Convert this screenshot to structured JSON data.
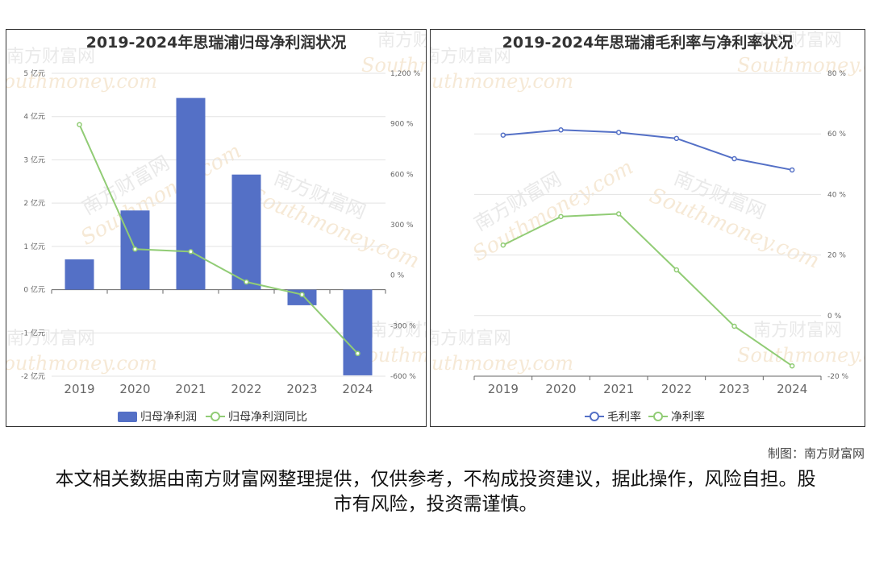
{
  "credit": "制图：南方财富网",
  "disclaimer": "本文相关数据由南方财富网整理提供，仅供参考，不构成投资建议，据此操作，风险自担。股市有风险，投资需谨慎。",
  "watermark": {
    "cn": "南方财富网",
    "en": "Southmoney.com"
  },
  "chart_data": [
    {
      "type": "bar+line",
      "title": "2019-2024年思瑞浦归母净利润状况",
      "categories": [
        "2019",
        "2020",
        "2021",
        "2022",
        "2023",
        "2024"
      ],
      "series": [
        {
          "name": "归母净利润",
          "type": "bar",
          "axis": "left",
          "color": "#5470c6",
          "values": [
            0.7,
            1.83,
            4.43,
            2.66,
            -0.36,
            -1.98
          ]
        },
        {
          "name": "归母净利润同比",
          "type": "line",
          "axis": "right",
          "color": "#91cc75",
          "values": [
            895,
            155,
            140,
            -40,
            -115,
            -465
          ]
        }
      ],
      "y_left": {
        "ticks": [
          5,
          4,
          3,
          2,
          1,
          0,
          -1,
          -2
        ],
        "labels": [
          "5 亿元",
          "4 亿元",
          "3 亿元",
          "2 亿元",
          "1 亿元",
          "0 亿元",
          "-1 亿元",
          "-2 亿元"
        ],
        "ylim": [
          -2,
          5
        ]
      },
      "y_right": {
        "ticks": [
          1200,
          900,
          600,
          300,
          0,
          -300,
          -600
        ],
        "labels": [
          "1,200 %",
          "900 %",
          "600 %",
          "300 %",
          "0 %",
          "-300 %",
          "-600 %"
        ],
        "ylim": [
          -600,
          1200
        ]
      },
      "grid": true,
      "legend": "bottom"
    },
    {
      "type": "line",
      "title": "2019-2024年思瑞浦毛利率与净利率状况",
      "categories": [
        "2019",
        "2020",
        "2021",
        "2022",
        "2023",
        "2024"
      ],
      "series": [
        {
          "name": "毛利率",
          "color": "#5470c6",
          "values": [
            59.6,
            61.3,
            60.5,
            58.5,
            51.8,
            48.1
          ]
        },
        {
          "name": "净利率",
          "color": "#91cc75",
          "values": [
            23.3,
            32.7,
            33.6,
            15.1,
            -3.5,
            -16.6
          ]
        }
      ],
      "y_right": {
        "ticks": [
          80,
          60,
          40,
          20,
          0,
          -20
        ],
        "labels": [
          "80 %",
          "60 %",
          "40 %",
          "20 %",
          "0 %",
          "-20 %"
        ],
        "ylim": [
          -20,
          80
        ]
      },
      "grid": true,
      "legend": "bottom"
    }
  ]
}
